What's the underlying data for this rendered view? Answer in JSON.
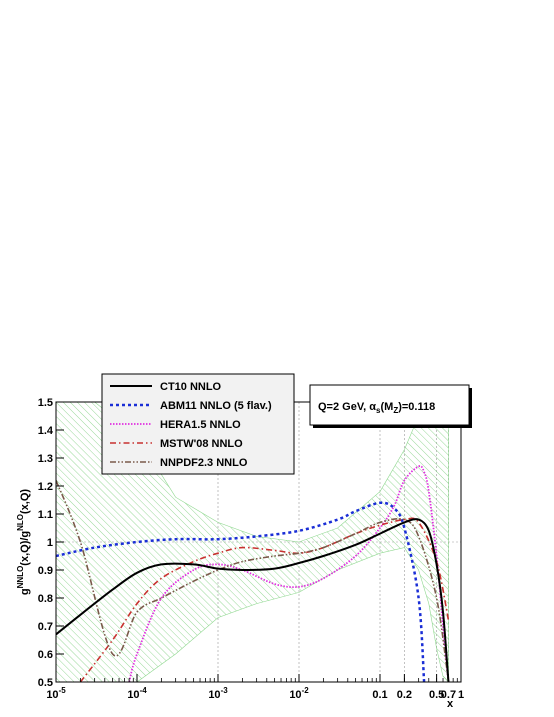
{
  "chart_data": {
    "type": "line",
    "x_scale": "log",
    "xlim": [
      1e-05,
      1
    ],
    "ylim": [
      0.5,
      1.5
    ],
    "xlabel": "x",
    "ylabel_parts": {
      "g1": "g",
      "s1": "NNLO",
      "m1": "(x,Q)/g",
      "s2": "NLO",
      "m2": "(x,Q)"
    },
    "x_ticks": [
      {
        "value": 1e-05,
        "label_base": "10",
        "label_exp": "-5"
      },
      {
        "value": 0.0001,
        "label_base": "10",
        "label_exp": "-4"
      },
      {
        "value": 0.001,
        "label_base": "10",
        "label_exp": "-3"
      },
      {
        "value": 0.01,
        "label_base": "10",
        "label_exp": "-2"
      },
      {
        "value": 0.1,
        "label_base": "0.1",
        "label_exp": ""
      },
      {
        "value": 0.2,
        "label_base": "0.2",
        "label_exp": ""
      },
      {
        "value": 0.5,
        "label_base": "0.5",
        "label_exp": ""
      },
      {
        "value": 0.7,
        "label_base": "0.7",
        "label_exp": ""
      },
      {
        "value": 1,
        "label_base": "1",
        "label_exp": ""
      }
    ],
    "y_ticks": [
      "0.5",
      "0.6",
      "0.7",
      "0.8",
      "0.9",
      "1",
      "1.1",
      "1.2",
      "1.3",
      "1.4",
      "1.5"
    ],
    "grid_x": [
      0.001,
      0.01,
      0.1,
      0.2,
      0.5,
      0.7
    ],
    "grid_y": [
      1.0
    ],
    "annotation": {
      "p1": "Q=2 GeV, ",
      "alpha": "α",
      "s": "s",
      "p2": "(M",
      "z": "Z",
      "p3": ")=0.118"
    },
    "band": {
      "name": "CT10 NNLO uncertainty",
      "x": [
        1e-05,
        3e-05,
        0.0001,
        0.0003,
        0.001,
        0.003,
        0.01,
        0.03,
        0.1,
        0.2,
        0.3,
        0.4,
        0.5,
        0.6,
        0.7
      ],
      "upper": [
        1.5,
        1.5,
        1.38,
        1.16,
        1.07,
        1.02,
        1.0,
        1.05,
        1.18,
        1.33,
        1.45,
        1.5,
        1.5,
        1.5,
        1.5
      ],
      "lower": [
        0.5,
        0.5,
        0.5,
        0.6,
        0.73,
        0.78,
        0.82,
        0.9,
        0.96,
        0.98,
        0.9,
        0.78,
        0.62,
        0.52,
        0.5
      ]
    },
    "series": [
      {
        "name": "CT10 NNLO",
        "color": "#000000",
        "width": 2,
        "dash": "",
        "x": [
          1e-05,
          2e-05,
          5e-05,
          0.0001,
          0.0002,
          0.0005,
          0.001,
          0.002,
          0.005,
          0.01,
          0.02,
          0.05,
          0.1,
          0.2,
          0.3,
          0.4,
          0.5,
          0.6,
          0.7
        ],
        "y": [
          0.67,
          0.74,
          0.83,
          0.89,
          0.92,
          0.92,
          0.905,
          0.9,
          0.905,
          0.925,
          0.95,
          0.99,
          1.03,
          1.07,
          1.08,
          1.04,
          0.92,
          0.75,
          0.5
        ]
      },
      {
        "name": "ABM11 NNLO (5 flav.)",
        "color": "#1a2ed6",
        "width": 2.5,
        "dash": "3,3",
        "x": [
          1e-05,
          3e-05,
          0.0001,
          0.0003,
          0.001,
          0.003,
          0.01,
          0.03,
          0.05,
          0.1,
          0.15,
          0.2,
          0.3,
          0.35
        ],
        "y": [
          0.95,
          0.98,
          1.0,
          1.01,
          1.01,
          1.02,
          1.04,
          1.08,
          1.11,
          1.14,
          1.12,
          1.05,
          0.8,
          0.5
        ]
      },
      {
        "name": "HERA1.5 NNLO",
        "color": "#e02fe0",
        "width": 1.8,
        "dash": "1.5,1.5",
        "x": [
          8e-05,
          0.0001,
          0.0002,
          0.0005,
          0.001,
          0.002,
          0.005,
          0.01,
          0.02,
          0.05,
          0.1,
          0.15,
          0.2,
          0.3,
          0.35,
          0.4,
          0.5,
          0.6,
          0.7
        ],
        "y": [
          0.5,
          0.6,
          0.8,
          0.9,
          0.92,
          0.9,
          0.85,
          0.84,
          0.87,
          0.95,
          1.05,
          1.13,
          1.22,
          1.27,
          1.25,
          1.18,
          0.95,
          0.7,
          0.5
        ]
      },
      {
        "name": "MSTW'08 NNLO",
        "color": "#c8312f",
        "width": 1.6,
        "dash": "6,3,1.5,3",
        "x": [
          2e-05,
          5e-05,
          0.0001,
          0.0002,
          0.0005,
          0.001,
          0.002,
          0.005,
          0.01,
          0.02,
          0.05,
          0.1,
          0.2,
          0.3,
          0.5,
          0.7
        ],
        "y": [
          0.5,
          0.65,
          0.78,
          0.87,
          0.93,
          0.96,
          0.98,
          0.97,
          0.96,
          0.98,
          1.03,
          1.06,
          1.08,
          1.07,
          0.93,
          0.72
        ]
      },
      {
        "name": "NNPDF2.3 NNLO",
        "color": "#7a5a4a",
        "width": 1.6,
        "dash": "6,2,1.5,2,1.5,2",
        "x": [
          1e-05,
          2e-05,
          5e-05,
          0.0001,
          0.0002,
          0.0005,
          0.001,
          0.002,
          0.005,
          0.01,
          0.02,
          0.05,
          0.1,
          0.2,
          0.3,
          0.5,
          0.7
        ],
        "y": [
          1.22,
          1.0,
          0.6,
          0.75,
          0.8,
          0.86,
          0.9,
          0.93,
          0.95,
          0.96,
          0.98,
          1.03,
          1.07,
          1.08,
          1.02,
          0.8,
          0.5
        ]
      }
    ]
  }
}
